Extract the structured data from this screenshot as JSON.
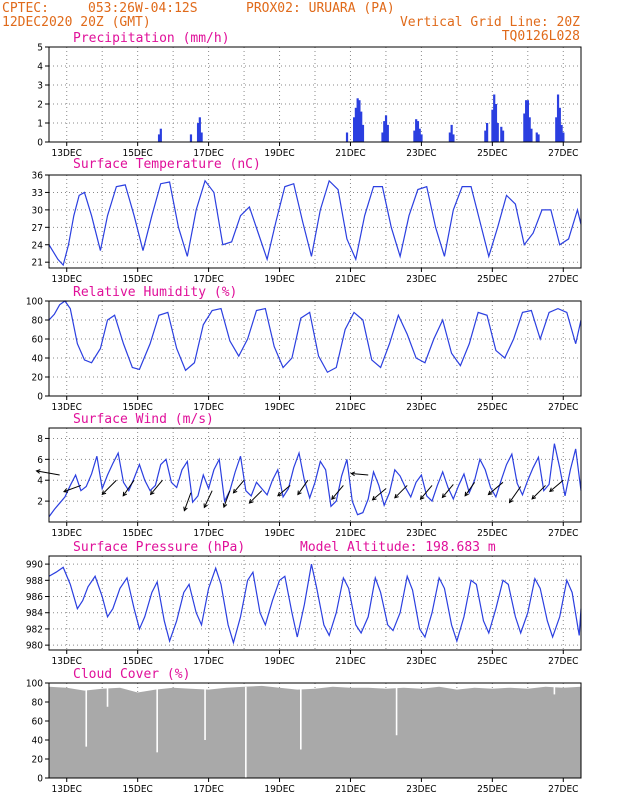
{
  "header": {
    "source": "CPTEC:",
    "coords": "053:26W-04:12S",
    "station": "PROX02: URUARA (PA)",
    "run": "12DEC2020 20Z (GMT)",
    "grid_note": "Vertical Grid Line: 20Z",
    "model": "TQ0126L028"
  },
  "colors": {
    "header": "#e06a1a",
    "panel_title": "#e0109a",
    "series": "#2b3fe0",
    "cloud_fill": "#a9a9a9",
    "wind_arrow": "#000000"
  },
  "chart_data": [
    {
      "type": "bar",
      "title": "Precipitation (mm/h)",
      "x_tick_labels": [
        "13DEC",
        "15DEC",
        "17DEC",
        "19DEC",
        "21DEC",
        "23DEC",
        "25DEC",
        "27DEC"
      ],
      "x_range_days": [
        0,
        15
      ],
      "ylim": [
        0,
        5
      ],
      "y_ticks": [
        0,
        1,
        2,
        3,
        4,
        5
      ],
      "grid": true,
      "bars": [
        [
          3.1,
          0.4
        ],
        [
          3.15,
          0.7
        ],
        [
          4.0,
          0.4
        ],
        [
          4.2,
          1.0
        ],
        [
          4.25,
          1.3
        ],
        [
          4.3,
          0.5
        ],
        [
          8.4,
          0.5
        ],
        [
          8.6,
          1.3
        ],
        [
          8.65,
          1.8
        ],
        [
          8.7,
          2.3
        ],
        [
          8.75,
          2.2
        ],
        [
          8.8,
          1.6
        ],
        [
          8.85,
          0.9
        ],
        [
          9.4,
          0.5
        ],
        [
          9.45,
          1.1
        ],
        [
          9.5,
          1.4
        ],
        [
          9.55,
          0.9
        ],
        [
          10.3,
          0.6
        ],
        [
          10.35,
          1.2
        ],
        [
          10.4,
          1.1
        ],
        [
          10.45,
          0.7
        ],
        [
          10.5,
          0.4
        ],
        [
          11.3,
          0.5
        ],
        [
          11.35,
          0.9
        ],
        [
          11.4,
          0.4
        ],
        [
          12.3,
          0.6
        ],
        [
          12.35,
          1.0
        ],
        [
          12.5,
          1.7
        ],
        [
          12.55,
          2.5
        ],
        [
          12.6,
          2.0
        ],
        [
          12.65,
          1.0
        ],
        [
          12.75,
          0.8
        ],
        [
          12.8,
          0.6
        ],
        [
          13.4,
          1.5
        ],
        [
          13.45,
          2.2
        ],
        [
          13.5,
          2.2
        ],
        [
          13.55,
          1.3
        ],
        [
          13.6,
          0.7
        ],
        [
          13.75,
          0.5
        ],
        [
          13.8,
          0.4
        ],
        [
          14.3,
          1.3
        ],
        [
          14.35,
          2.5
        ],
        [
          14.4,
          1.8
        ],
        [
          14.45,
          0.9
        ],
        [
          14.5,
          0.5
        ]
      ]
    },
    {
      "type": "line",
      "title": "Surface Temperature (nC)",
      "x_tick_labels": [
        "13DEC",
        "15DEC",
        "17DEC",
        "19DEC",
        "21DEC",
        "23DEC",
        "25DEC",
        "27DEC"
      ],
      "x_range_days": [
        0,
        15
      ],
      "ylim": [
        20,
        36
      ],
      "y_ticks": [
        21,
        24,
        27,
        30,
        33,
        36
      ],
      "grid": true,
      "x": [
        0,
        0.1,
        0.25,
        0.4,
        0.55,
        0.7,
        0.85,
        1.0,
        1.2,
        1.45,
        1.65,
        1.9,
        2.15,
        2.4,
        2.65,
        2.9,
        3.15,
        3.4,
        3.65,
        3.9,
        4.15,
        4.4,
        4.65,
        4.9,
        5.15,
        5.4,
        5.65,
        5.9,
        6.15,
        6.4,
        6.65,
        6.9,
        7.15,
        7.4,
        7.65,
        7.9,
        8.15,
        8.4,
        8.65,
        8.9,
        9.15,
        9.4,
        9.65,
        9.9,
        10.15,
        10.4,
        10.65,
        10.9,
        11.15,
        11.4,
        11.65,
        11.9,
        12.15,
        12.4,
        12.65,
        12.9,
        13.15,
        13.4,
        13.65,
        13.9,
        14.15,
        14.4,
        14.65,
        14.9,
        15.0
      ],
      "y": [
        24,
        23,
        21.5,
        20.5,
        24,
        29,
        32.5,
        33,
        29,
        23,
        29,
        34,
        34.3,
        29,
        23,
        29,
        34.5,
        34.8,
        27,
        22,
        30,
        35,
        33,
        24,
        24.5,
        29,
        30.5,
        26,
        21.5,
        28,
        34,
        34.5,
        28,
        22,
        30,
        35,
        33.5,
        25,
        21.5,
        29,
        34,
        34,
        27,
        22,
        29,
        33.5,
        34,
        27,
        22,
        30,
        34,
        34,
        28,
        22,
        27,
        32.5,
        31,
        24,
        26,
        30,
        30,
        24,
        25,
        30,
        27.5
      ],
      "color": "#2b3fe0"
    },
    {
      "type": "line",
      "title": "Relative Humidity (%)",
      "x_tick_labels": [
        "13DEC",
        "15DEC",
        "17DEC",
        "19DEC",
        "21DEC",
        "23DEC",
        "25DEC",
        "27DEC"
      ],
      "x_range_days": [
        0,
        15
      ],
      "ylim": [
        0,
        100
      ],
      "y_ticks": [
        0,
        20,
        40,
        60,
        80,
        100
      ],
      "grid": true,
      "x": [
        0,
        0.15,
        0.3,
        0.45,
        0.6,
        0.8,
        1.0,
        1.2,
        1.45,
        1.65,
        1.85,
        2.1,
        2.35,
        2.55,
        2.85,
        3.1,
        3.35,
        3.6,
        3.85,
        4.1,
        4.35,
        4.6,
        4.85,
        5.1,
        5.35,
        5.6,
        5.85,
        6.1,
        6.35,
        6.6,
        6.85,
        7.1,
        7.35,
        7.6,
        7.85,
        8.1,
        8.35,
        8.6,
        8.85,
        9.1,
        9.35,
        9.6,
        9.85,
        10.1,
        10.35,
        10.6,
        10.85,
        11.1,
        11.35,
        11.6,
        11.85,
        12.1,
        12.35,
        12.6,
        12.85,
        13.1,
        13.35,
        13.6,
        13.85,
        14.1,
        14.35,
        14.6,
        14.85,
        15.0
      ],
      "y": [
        80,
        86,
        96,
        100,
        92,
        55,
        38,
        35,
        50,
        80,
        85,
        55,
        30,
        28,
        55,
        85,
        88,
        50,
        27,
        35,
        75,
        90,
        92,
        58,
        42,
        60,
        90,
        92,
        52,
        30,
        40,
        82,
        88,
        42,
        25,
        30,
        70,
        88,
        80,
        38,
        30,
        55,
        85,
        65,
        40,
        35,
        60,
        80,
        45,
        32,
        55,
        88,
        85,
        48,
        40,
        60,
        88,
        90,
        60,
        88,
        92,
        88,
        55,
        80
      ],
      "color": "#2b3fe0"
    },
    {
      "type": "line",
      "title": "Surface Wind (m/s)",
      "x_tick_labels": [
        "13DEC",
        "15DEC",
        "17DEC",
        "19DEC",
        "21DEC",
        "23DEC",
        "25DEC",
        "27DEC"
      ],
      "x_range_days": [
        0,
        15
      ],
      "ylim": [
        0,
        9
      ],
      "y_ticks": [
        2,
        4,
        6,
        8
      ],
      "grid": true,
      "x": [
        0,
        0.15,
        0.3,
        0.45,
        0.6,
        0.75,
        0.9,
        1.05,
        1.2,
        1.35,
        1.5,
        1.65,
        1.8,
        1.95,
        2.1,
        2.25,
        2.4,
        2.55,
        2.7,
        2.85,
        3.0,
        3.15,
        3.3,
        3.45,
        3.6,
        3.75,
        3.9,
        4.05,
        4.2,
        4.35,
        4.5,
        4.65,
        4.8,
        4.95,
        5.1,
        5.25,
        5.4,
        5.55,
        5.7,
        5.85,
        6.0,
        6.15,
        6.3,
        6.45,
        6.6,
        6.75,
        6.9,
        7.05,
        7.2,
        7.35,
        7.5,
        7.65,
        7.8,
        7.95,
        8.1,
        8.25,
        8.4,
        8.55,
        8.7,
        8.85,
        9.0,
        9.15,
        9.3,
        9.45,
        9.6,
        9.75,
        9.9,
        10.05,
        10.2,
        10.35,
        10.5,
        10.65,
        10.8,
        10.95,
        11.1,
        11.25,
        11.4,
        11.55,
        11.7,
        11.85,
        12.0,
        12.15,
        12.3,
        12.45,
        12.6,
        12.75,
        12.9,
        13.05,
        13.2,
        13.35,
        13.5,
        13.65,
        13.8,
        13.95,
        14.1,
        14.25,
        14.4,
        14.55,
        14.7,
        14.85,
        15.0
      ],
      "y": [
        0.5,
        1.2,
        1.8,
        2.4,
        3.5,
        4.5,
        3.0,
        3.4,
        4.6,
        6.3,
        3.2,
        4.5,
        5.6,
        6.6,
        3.8,
        3.0,
        4.2,
        5.5,
        4.0,
        3.0,
        3.5,
        5.5,
        6.0,
        3.8,
        3.3,
        5.0,
        5.8,
        1.9,
        2.5,
        4.5,
        3.2,
        5.0,
        6.0,
        2.0,
        3.0,
        4.8,
        6.3,
        3.0,
        2.5,
        3.8,
        3.2,
        2.6,
        4.0,
        5.0,
        2.4,
        3.2,
        5.2,
        6.6,
        4.0,
        2.3,
        3.8,
        5.8,
        5.0,
        1.5,
        2.0,
        4.4,
        6.0,
        2.0,
        0.7,
        0.9,
        2.2,
        4.8,
        3.5,
        1.6,
        2.8,
        5.0,
        4.4,
        3.3,
        2.4,
        3.8,
        4.5,
        2.5,
        2.0,
        3.5,
        4.8,
        3.3,
        2.2,
        3.5,
        4.6,
        2.8,
        4.0,
        6.0,
        5.0,
        3.3,
        2.4,
        4.0,
        5.5,
        6.5,
        3.7,
        2.6,
        4.0,
        5.2,
        6.2,
        3.0,
        3.6,
        7.5,
        5.2,
        2.5,
        5.0,
        7.0,
        3.0
      ],
      "color": "#2b3fe0",
      "wind_arrows": [
        [
          0.3,
          4.5,
          4.7,
          280
        ],
        [
          0.9,
          3.5,
          3.6,
          250
        ],
        [
          1.9,
          4.0,
          4.0,
          225
        ],
        [
          2.4,
          4.0,
          3.8,
          215
        ],
        [
          3.2,
          4.0,
          3.7,
          220
        ],
        [
          4.0,
          2.8,
          3.8,
          200
        ],
        [
          4.6,
          3.0,
          3.7,
          205
        ],
        [
          5.1,
          3.0,
          3.5,
          200
        ],
        [
          5.5,
          4.0,
          3.3,
          220
        ],
        [
          6.0,
          3.0,
          3.5,
          225
        ],
        [
          6.8,
          3.5,
          3.2,
          230
        ],
        [
          7.3,
          4.0,
          3.5,
          215
        ],
        [
          8.3,
          3.5,
          3.6,
          220
        ],
        [
          9.0,
          4.5,
          3.4,
          275
        ],
        [
          9.5,
          3.2,
          3.5,
          230
        ],
        [
          10.1,
          3.5,
          3.5,
          225
        ],
        [
          10.8,
          3.5,
          3.6,
          220
        ],
        [
          11.4,
          3.6,
          3.4,
          220
        ],
        [
          12.0,
          3.8,
          3.3,
          215
        ],
        [
          12.8,
          3.8,
          3.8,
          230
        ],
        [
          13.3,
          3.4,
          3.9,
          215
        ],
        [
          14.0,
          3.5,
          3.8,
          225
        ],
        [
          14.5,
          4.0,
          3.5,
          230
        ]
      ]
    },
    {
      "type": "line",
      "title": "Surface Pressure (hPa)",
      "subtitle": "Model Altitude: 198.683 m",
      "x_tick_labels": [
        "13DEC",
        "15DEC",
        "17DEC",
        "19DEC",
        "21DEC",
        "23DEC",
        "25DEC",
        "27DEC"
      ],
      "x_range_days": [
        0,
        15
      ],
      "ylim": [
        979.4,
        991
      ],
      "y_ticks": [
        980,
        982,
        984,
        986,
        988,
        990
      ],
      "grid": true,
      "x": [
        0,
        0.2,
        0.4,
        0.6,
        0.8,
        0.95,
        1.1,
        1.3,
        1.5,
        1.65,
        1.8,
        2.0,
        2.2,
        2.4,
        2.55,
        2.7,
        2.9,
        3.05,
        3.25,
        3.4,
        3.6,
        3.8,
        3.95,
        4.15,
        4.3,
        4.5,
        4.7,
        4.85,
        5.05,
        5.2,
        5.4,
        5.6,
        5.75,
        5.95,
        6.1,
        6.3,
        6.5,
        6.65,
        6.85,
        7.0,
        7.2,
        7.4,
        7.55,
        7.75,
        7.9,
        8.1,
        8.3,
        8.45,
        8.65,
        8.8,
        9.0,
        9.2,
        9.35,
        9.55,
        9.7,
        9.9,
        10.1,
        10.25,
        10.45,
        10.6,
        10.8,
        11.0,
        11.15,
        11.35,
        11.5,
        11.7,
        11.9,
        12.05,
        12.25,
        12.4,
        12.6,
        12.8,
        12.95,
        13.15,
        13.3,
        13.5,
        13.7,
        13.85,
        14.05,
        14.2,
        14.4,
        14.6,
        14.75,
        14.95,
        15.0
      ],
      "y": [
        988.5,
        989.0,
        989.6,
        987.5,
        984.5,
        985.5,
        987.2,
        988.5,
        986.0,
        983.5,
        984.5,
        987.0,
        988.3,
        984.5,
        982.0,
        983.5,
        986.5,
        987.8,
        983.0,
        980.5,
        983.0,
        986.5,
        987.5,
        984.0,
        982.5,
        987.0,
        989.5,
        987.5,
        982.5,
        980.3,
        983.5,
        988.0,
        989.0,
        984.0,
        982.5,
        985.5,
        988.0,
        988.5,
        984.0,
        981.0,
        985.0,
        990.0,
        987.0,
        982.5,
        981.2,
        984.0,
        988.3,
        987.0,
        982.5,
        981.5,
        983.5,
        988.3,
        986.5,
        982.5,
        981.8,
        984.0,
        988.5,
        986.8,
        982.0,
        981.0,
        984.0,
        988.3,
        987.0,
        982.5,
        980.5,
        983.5,
        988.0,
        987.5,
        983.0,
        981.5,
        984.5,
        988.0,
        987.5,
        983.5,
        981.5,
        984.0,
        988.2,
        987.0,
        983.0,
        981.0,
        983.5,
        988.0,
        986.5,
        981.2,
        984.5
      ],
      "color": "#2b3fe0"
    },
    {
      "type": "bar",
      "title": "Cloud Cover (%)",
      "x_tick_labels": [
        "13DEC",
        "15DEC",
        "17DEC",
        "19DEC",
        "21DEC",
        "23DEC",
        "25DEC",
        "27DEC"
      ],
      "x_range_days": [
        0,
        15
      ],
      "ylim": [
        0,
        100
      ],
      "y_ticks": [
        0,
        20,
        40,
        60,
        80,
        100
      ],
      "grid": true,
      "color": "#a9a9a9",
      "x": [
        0,
        0.5,
        1,
        1.5,
        2,
        2.5,
        3,
        3.5,
        4,
        4.5,
        5,
        5.5,
        6,
        6.5,
        7,
        7.5,
        8,
        8.5,
        9,
        9.5,
        10,
        10.5,
        11,
        11.5,
        12,
        12.5,
        13,
        13.5,
        14,
        14.5,
        15
      ],
      "y": [
        96,
        95,
        92,
        94,
        95,
        90,
        93,
        95,
        94,
        93,
        95,
        96,
        97,
        95,
        93,
        94,
        96,
        95,
        95,
        94,
        95,
        94,
        96,
        93,
        95,
        94,
        95,
        94,
        96,
        95,
        96
      ],
      "dips": [
        [
          1.05,
          33
        ],
        [
          1.65,
          75
        ],
        [
          3.05,
          27
        ],
        [
          4.4,
          40
        ],
        [
          5.55,
          0
        ],
        [
          7.1,
          30
        ],
        [
          9.8,
          45
        ],
        [
          14.25,
          88
        ]
      ]
    }
  ]
}
